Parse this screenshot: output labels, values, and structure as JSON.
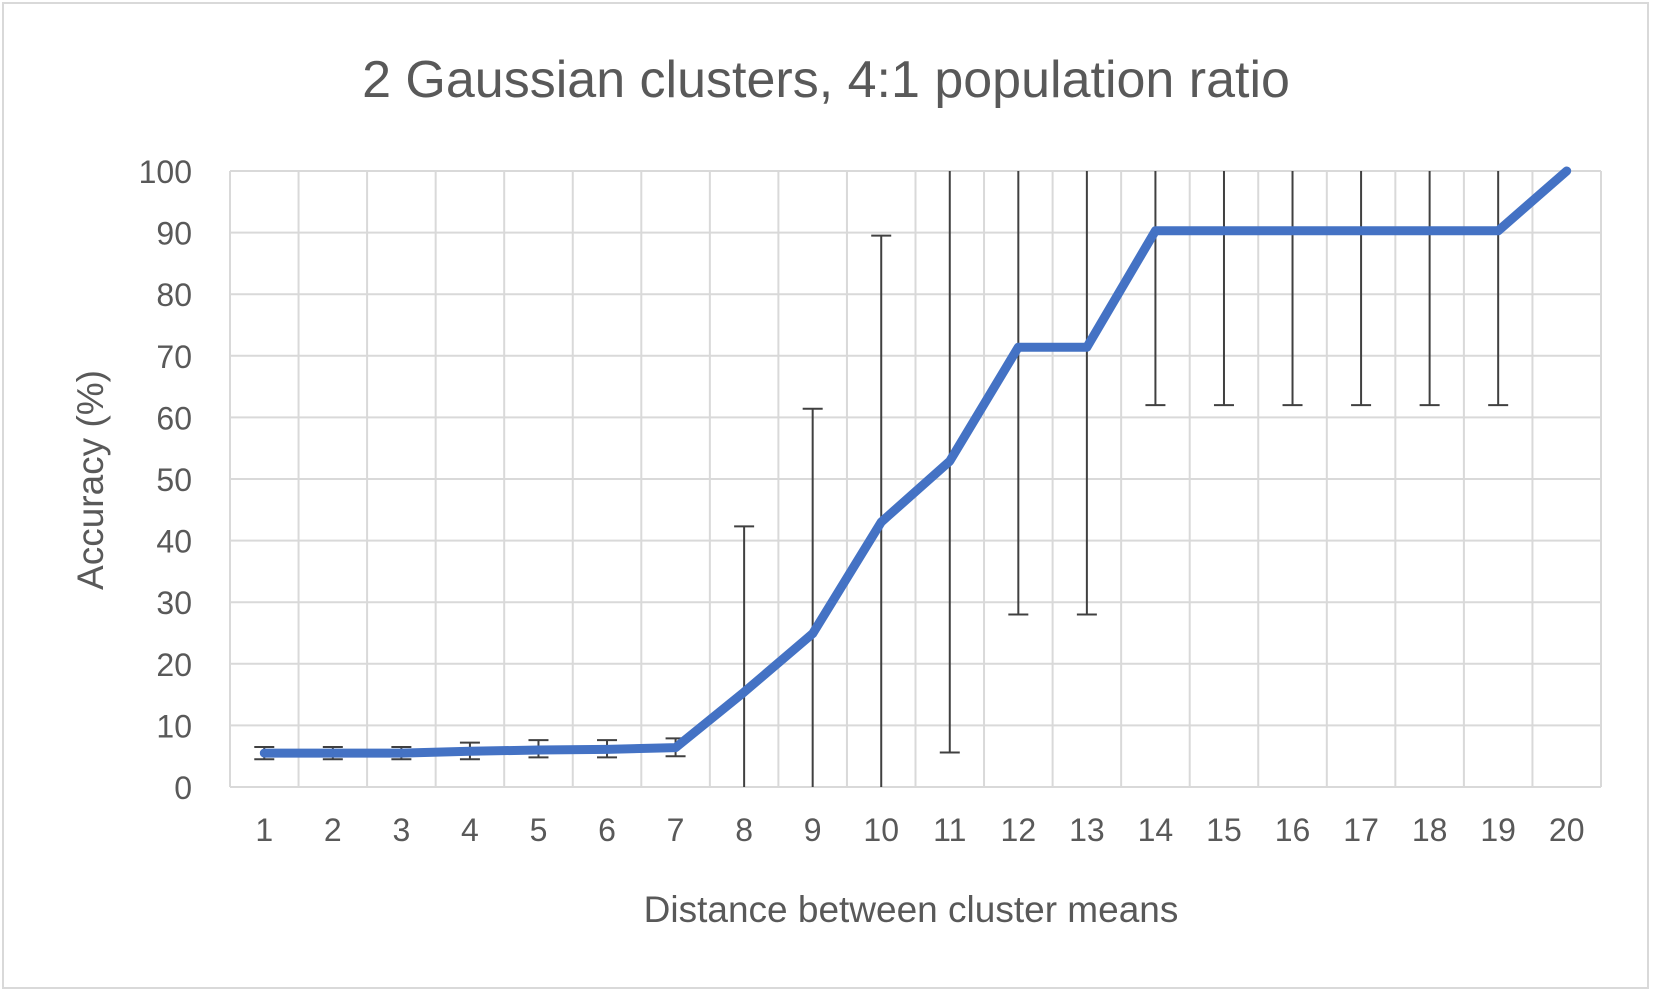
{
  "chart_data": {
    "type": "line",
    "title": "2 Gaussian clusters, 4:1 population ratio",
    "xlabel": "Distance between cluster means",
    "ylabel": "Accuracy (%)",
    "categories": [
      "1",
      "2",
      "3",
      "4",
      "5",
      "6",
      "7",
      "8",
      "9",
      "10",
      "11",
      "12",
      "13",
      "14",
      "15",
      "16",
      "17",
      "18",
      "19",
      "20"
    ],
    "series": [
      {
        "values": [
          5.5,
          5.5,
          5.5,
          5.8,
          6.0,
          6.1,
          6.4,
          15.4,
          24.9,
          43.0,
          52.9,
          71.4,
          71.4,
          90.3,
          90.3,
          90.3,
          90.3,
          90.3,
          90.3,
          100.0
        ],
        "error_low": [
          4.5,
          4.5,
          4.5,
          4.5,
          4.8,
          4.8,
          5.0,
          0,
          0,
          0,
          5.6,
          28.0,
          28.0,
          62.0,
          62.0,
          62.0,
          62.0,
          62.0,
          62.0,
          null
        ],
        "error_high": [
          6.5,
          6.5,
          6.5,
          7.2,
          7.6,
          7.6,
          7.9,
          42.3,
          61.4,
          89.5,
          100,
          100,
          100,
          100,
          100,
          100,
          100,
          100,
          100,
          null
        ],
        "color": "#4472c4"
      }
    ],
    "ylim": [
      0,
      100
    ],
    "yticks": [
      0,
      10,
      20,
      30,
      40,
      50,
      60,
      70,
      80,
      90,
      100
    ],
    "grid": true,
    "legend": "none"
  }
}
